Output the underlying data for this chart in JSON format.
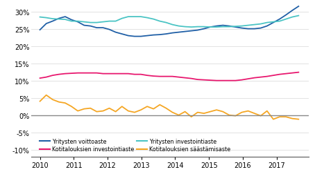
{
  "ylim": [
    -0.12,
    0.32
  ],
  "yticks": [
    -0.1,
    -0.05,
    0.0,
    0.05,
    0.1,
    0.15,
    0.2,
    0.25,
    0.3
  ],
  "xlim": [
    2009.75,
    2017.95
  ],
  "xticks": [
    2010,
    2011,
    2012,
    2013,
    2014,
    2015,
    2016,
    2017
  ],
  "colors": {
    "yritysvoitto": "#1f5fa6",
    "yritysInvestointi": "#4ac4c4",
    "kotitInvestointi": "#e8176e",
    "kotitSaastaminen": "#f5a623"
  },
  "legend": [
    {
      "label": "Yritysten voittoaste",
      "color": "#1f5fa6"
    },
    {
      "label": "Kotitalouksien investointiaste",
      "color": "#e8176e"
    },
    {
      "label": "Yritysten investointiaste",
      "color": "#4ac4c4"
    },
    {
      "label": "Kotitalouksien säästämisaste",
      "color": "#f5a623"
    }
  ],
  "zero_line_color": "#888888",
  "grid_color": "#dddddd",
  "yritysvoitto": [
    0.247,
    0.265,
    0.272,
    0.28,
    0.285,
    0.276,
    0.27,
    0.26,
    0.258,
    0.253,
    0.253,
    0.248,
    0.24,
    0.235,
    0.23,
    0.228,
    0.228,
    0.23,
    0.232,
    0.233,
    0.235,
    0.238,
    0.24,
    0.242,
    0.244,
    0.246,
    0.25,
    0.255,
    0.258,
    0.26,
    0.258,
    0.255,
    0.252,
    0.25,
    0.25,
    0.252,
    0.258,
    0.268,
    0.278,
    0.29,
    0.303,
    0.315
  ],
  "yritysInvestointi": [
    0.284,
    0.282,
    0.279,
    0.278,
    0.277,
    0.272,
    0.272,
    0.27,
    0.268,
    0.268,
    0.27,
    0.272,
    0.272,
    0.28,
    0.285,
    0.285,
    0.285,
    0.282,
    0.278,
    0.272,
    0.268,
    0.262,
    0.258,
    0.256,
    0.255,
    0.256,
    0.256,
    0.255,
    0.255,
    0.256,
    0.256,
    0.257,
    0.258,
    0.26,
    0.262,
    0.264,
    0.268,
    0.27,
    0.272,
    0.278,
    0.284,
    0.288
  ],
  "kotitInvestointi": [
    0.107,
    0.11,
    0.115,
    0.118,
    0.12,
    0.121,
    0.122,
    0.122,
    0.122,
    0.122,
    0.12,
    0.12,
    0.12,
    0.12,
    0.12,
    0.118,
    0.118,
    0.115,
    0.113,
    0.112,
    0.112,
    0.112,
    0.11,
    0.108,
    0.106,
    0.103,
    0.102,
    0.101,
    0.1,
    0.1,
    0.1,
    0.1,
    0.102,
    0.105,
    0.108,
    0.11,
    0.112,
    0.115,
    0.118,
    0.12,
    0.122,
    0.124
  ],
  "kotitSaastaminen": [
    0.04,
    0.058,
    0.045,
    0.038,
    0.035,
    0.025,
    0.012,
    0.018,
    0.02,
    0.01,
    0.012,
    0.02,
    0.01,
    0.025,
    0.012,
    0.008,
    0.015,
    0.025,
    0.018,
    0.03,
    0.02,
    0.008,
    0.0,
    0.01,
    -0.005,
    0.008,
    0.005,
    0.01,
    0.015,
    0.01,
    0.0,
    -0.002,
    0.008,
    0.012,
    0.005,
    -0.002,
    0.012,
    -0.012,
    -0.005,
    -0.005,
    -0.01,
    -0.012
  ]
}
